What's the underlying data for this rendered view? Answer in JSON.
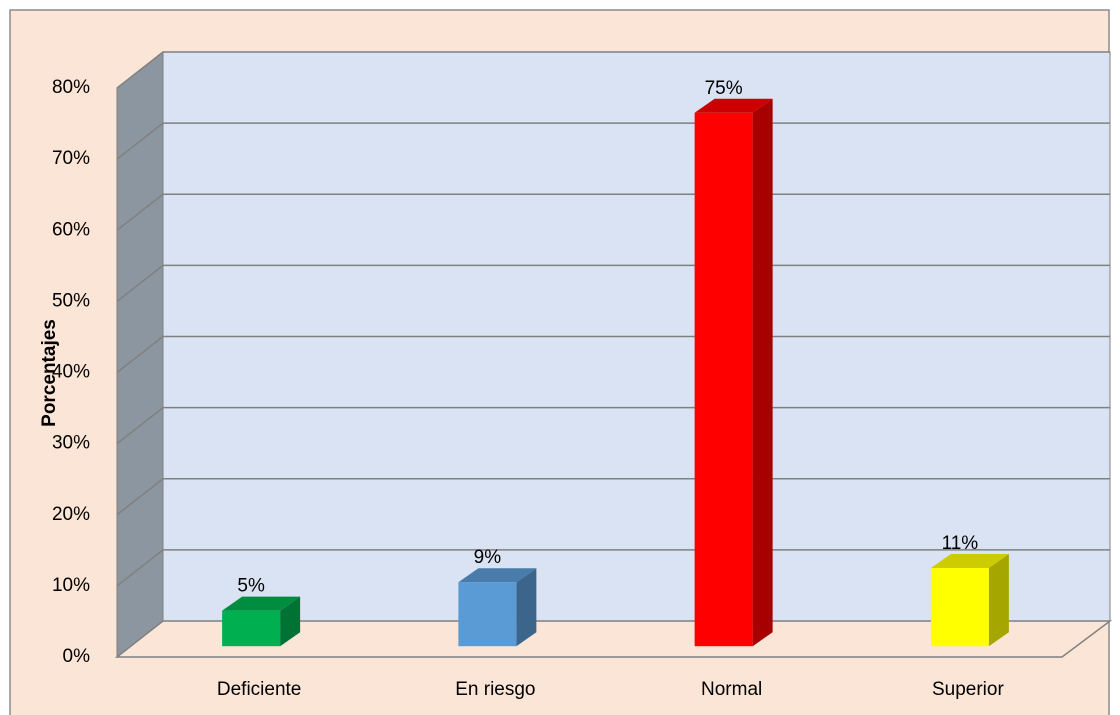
{
  "chart_data": {
    "type": "bar3d",
    "y_label": "Porcentajes",
    "categories": [
      "Deficiente",
      "En riesgo",
      "Normal",
      "Superior"
    ],
    "values": [
      5,
      9,
      75,
      11
    ],
    "value_labels": [
      "5%",
      "9%",
      "75%",
      "11%"
    ],
    "colors": [
      "#00b050",
      "#5b9bd5",
      "#ff0000",
      "#ffff00"
    ],
    "ylim": [
      0,
      80
    ],
    "yticks": [
      {
        "value": 0,
        "label": "0%"
      },
      {
        "value": 10,
        "label": "10%"
      },
      {
        "value": 20,
        "label": "20%"
      },
      {
        "value": 30,
        "label": "30%"
      },
      {
        "value": 40,
        "label": "40%"
      },
      {
        "value": 50,
        "label": "50%"
      },
      {
        "value": 60,
        "label": "60%"
      },
      {
        "value": 70,
        "label": "70%"
      },
      {
        "value": 80,
        "label": "80%"
      }
    ],
    "grid": true
  }
}
